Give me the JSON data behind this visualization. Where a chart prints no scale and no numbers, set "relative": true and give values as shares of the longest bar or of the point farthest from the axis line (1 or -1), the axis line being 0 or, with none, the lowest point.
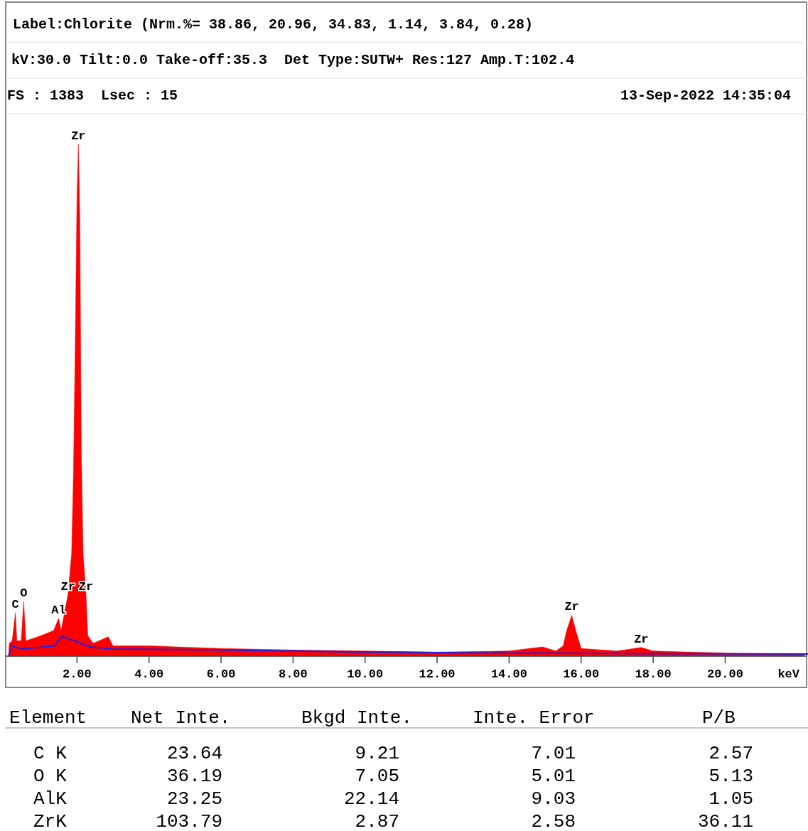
{
  "chart_data": {
    "type": "area",
    "title": "Label:Chlorite (Nrm.%= 38.86, 20.96, 34.83, 1.14, 3.84, 0.28)",
    "subtitle": "kV:30.0 Tilt:0.0 Take-off:35.3  Det Type:SUTW+ Res:127 Amp.T:102.4",
    "xlabel": "keV",
    "relative": true,
    "xlim": [
      0,
      22.3
    ],
    "xticks": [
      {
        "value": 2,
        "label": "2.00"
      },
      {
        "value": 4,
        "label": "4.00"
      },
      {
        "value": 6,
        "label": "6.00"
      },
      {
        "value": 8,
        "label": "8.00"
      },
      {
        "value": 10,
        "label": "10.00"
      },
      {
        "value": 12,
        "label": "12.00"
      },
      {
        "value": 14,
        "label": "14.00"
      },
      {
        "value": 16,
        "label": "16.00"
      },
      {
        "value": 18,
        "label": "18.00"
      },
      {
        "value": 20,
        "label": "20.00"
      }
    ],
    "series": [
      {
        "color": "#ff0000",
        "x": [
          0.1,
          0.12,
          0.2,
          0.25,
          0.29,
          0.33,
          0.45,
          0.52,
          0.58,
          0.8,
          1.0,
          1.35,
          1.49,
          1.56,
          1.65,
          1.75,
          1.85,
          1.9,
          1.95,
          2.0,
          2.04,
          2.08,
          2.12,
          2.17,
          2.25,
          2.3,
          2.45,
          2.87,
          3.0,
          4.0,
          6.0,
          8.0,
          10.0,
          12.0,
          14.0,
          14.93,
          15.3,
          15.5,
          15.6,
          15.74,
          15.85,
          16.0,
          17.0,
          17.67,
          18.0,
          20.0,
          22.2
        ],
        "values": [
          0,
          0.025,
          0.03,
          0.06,
          0.085,
          0.03,
          0.03,
          0.107,
          0.03,
          0.035,
          0.04,
          0.05,
          0.074,
          0.05,
          0.084,
          0.12,
          0.2,
          0.35,
          0.6,
          0.9,
          1,
          0.85,
          0.4,
          0.2,
          0.12,
          0.04,
          0.025,
          0.038,
          0.02,
          0.02,
          0.015,
          0.012,
          0.01,
          0.008,
          0.01,
          0.018,
          0.01,
          0.02,
          0.05,
          0.08,
          0.05,
          0.015,
          0.01,
          0.017,
          0.01,
          0.006,
          0.004
        ]
      },
      {
        "type": "line",
        "color": "#2020e0",
        "x": [
          0.1,
          0.2,
          0.45,
          1.38,
          1.58,
          2.37,
          3.0,
          6.0,
          10.0,
          14.0,
          18.0,
          22.3
        ],
        "values": [
          0,
          0.02,
          0.014,
          0.02,
          0.039,
          0.018,
          0.014,
          0.012,
          0.008,
          0.006,
          0.005,
          0.004
        ]
      }
    ],
    "annotations": [
      {
        "text": "C",
        "x": 0.29,
        "y": 0.085
      },
      {
        "text": "O",
        "x": 0.52,
        "y": 0.107
      },
      {
        "text": "Al",
        "x": 1.49,
        "y": 0.074
      },
      {
        "text": "Zr",
        "x": 1.75,
        "y": 0.12
      },
      {
        "text": "Zr",
        "x": 2.25,
        "y": 0.12
      },
      {
        "text": "Zr",
        "x": 2.04,
        "y": 1
      },
      {
        "text": "Zr",
        "x": 15.74,
        "y": 0.08
      },
      {
        "text": "Zr",
        "x": 17.67,
        "y": 0.017
      },
      "FS : 1383  Lsec : 15",
      "13-Sep-2022 14:35:04",
      "Element  Net Inte.  Bkgd Inte.  Inte. Error  P/B",
      "C K  23.64  9.21  7.01  2.57",
      "O K  36.19  7.05  5.01  5.13",
      "AlK  23.25  22.14  9.03  1.05",
      "ZrK  103.79  2.87  2.58  36.11"
    ]
  }
}
